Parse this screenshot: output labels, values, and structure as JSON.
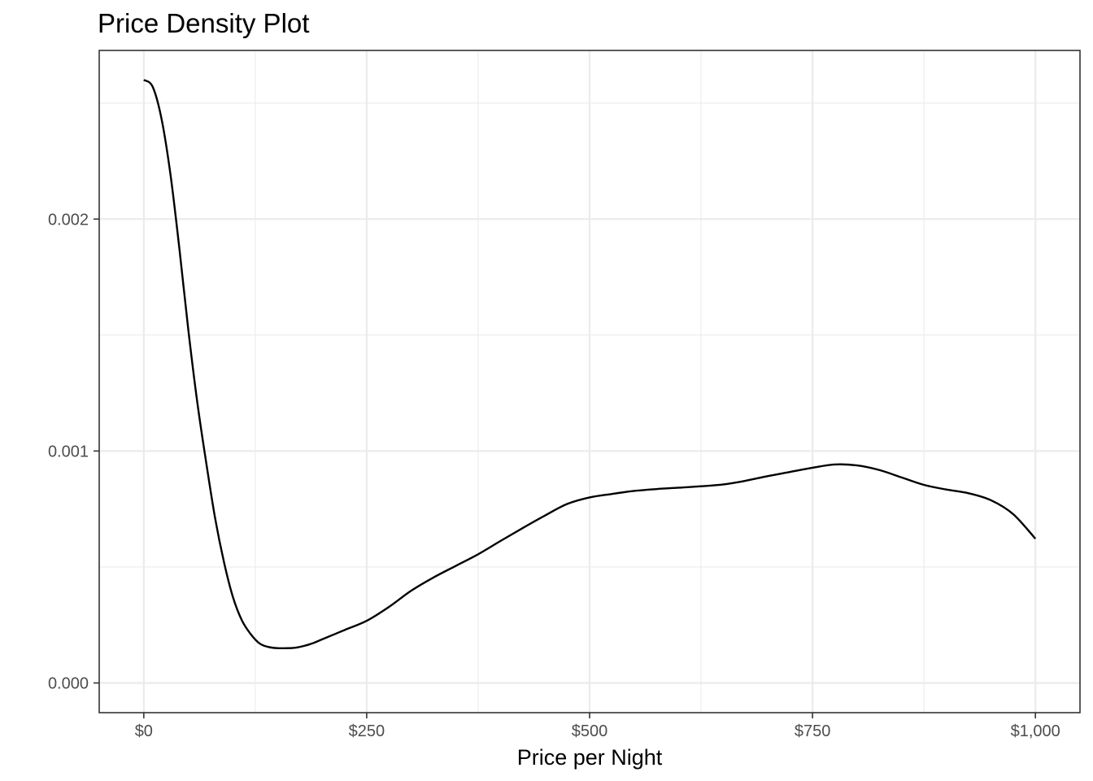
{
  "chart_data": {
    "type": "line",
    "title": "Price Density Plot",
    "xlabel": "Price per Night",
    "ylabel": "",
    "xlim": [
      -50,
      1050
    ],
    "ylim": [
      -0.000128,
      0.002727
    ],
    "x_ticks": [
      0,
      250,
      500,
      750,
      1000
    ],
    "x_tick_labels": [
      "$0",
      "$250",
      "$500",
      "$750",
      "$1,000"
    ],
    "x_minor_ticks": [
      125,
      375,
      625,
      875
    ],
    "y_ticks": [
      0.0,
      0.001,
      0.002
    ],
    "y_tick_labels": [
      "0.000",
      "0.001",
      "0.002"
    ],
    "y_minor_ticks": [
      0.0005,
      0.0015,
      0.0025
    ],
    "grid": true,
    "line_color": "#000000",
    "series": [
      {
        "x": [
          0,
          10,
          20,
          30,
          40,
          50,
          60,
          70,
          80,
          90,
          100,
          110,
          120,
          130,
          140,
          150,
          160,
          170,
          180,
          190,
          200,
          225,
          250,
          275,
          300,
          325,
          350,
          375,
          400,
          425,
          450,
          475,
          500,
          525,
          550,
          575,
          600,
          625,
          650,
          675,
          700,
          725,
          750,
          775,
          800,
          825,
          850,
          875,
          900,
          925,
          950,
          975,
          1000
        ],
        "y": [
          0.0026,
          0.00257,
          0.00243,
          0.00219,
          0.00187,
          0.00152,
          0.00121,
          0.00095,
          0.00071,
          0.00052,
          0.00037,
          0.00027,
          0.00021,
          0.00017,
          0.000155,
          0.00015,
          0.00015,
          0.000152,
          0.00016,
          0.000172,
          0.000188,
          0.000228,
          0.000268,
          0.000328,
          0.000398,
          0.000455,
          0.000505,
          0.000555,
          0.000612,
          0.000668,
          0.000722,
          0.000772,
          0.0008,
          0.000815,
          0.000828,
          0.000836,
          0.000842,
          0.000848,
          0.000856,
          0.000872,
          0.000892,
          0.00091,
          0.000928,
          0.000942,
          0.000938,
          0.000918,
          0.000886,
          0.000854,
          0.000834,
          0.000818,
          0.000788,
          0.000728,
          0.000622
        ]
      }
    ]
  }
}
